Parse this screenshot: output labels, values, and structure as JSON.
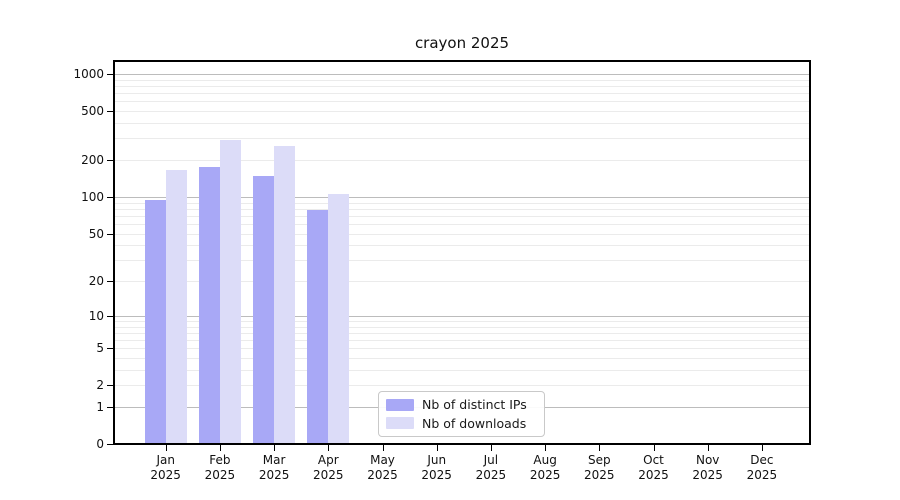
{
  "figure": {
    "title": "crayon 2025",
    "background": "#ffffff"
  },
  "chart_data": {
    "type": "bar",
    "title": "crayon 2025",
    "categories": [
      "Jan 2025",
      "Feb 2025",
      "Mar 2025",
      "Apr 2025",
      "May 2025",
      "Jun 2025",
      "Jul 2025",
      "Aug 2025",
      "Sep 2025",
      "Oct 2025",
      "Nov 2025",
      "Dec 2025"
    ],
    "series": [
      {
        "name": "Nb of distinct IPs",
        "color": "#a8a8f6",
        "values": [
          95,
          175,
          148,
          78,
          null,
          null,
          null,
          null,
          null,
          null,
          null,
          null
        ]
      },
      {
        "name": "Nb of downloads",
        "color": "#dcdcf8",
        "values": [
          165,
          290,
          258,
          106,
          null,
          null,
          null,
          null,
          null,
          null,
          null,
          null
        ]
      }
    ],
    "yscale": "log1p",
    "yticks": [
      0,
      1,
      2,
      5,
      10,
      20,
      50,
      100,
      200,
      500,
      1000
    ],
    "ytick_labels": [
      "0",
      "1",
      "2",
      "5",
      "10",
      "20",
      "50",
      "100",
      "200",
      "500",
      "1000"
    ],
    "minor_yticks": [
      2,
      3,
      4,
      5,
      6,
      7,
      8,
      9,
      20,
      30,
      40,
      50,
      60,
      70,
      80,
      90,
      200,
      300,
      400,
      500,
      600,
      700,
      800,
      900
    ],
    "major_yticks": [
      1,
      10,
      100,
      1000
    ],
    "ylim": [
      0,
      1300
    ],
    "xlabel": "",
    "ylabel": "",
    "grid": "both",
    "legend": {
      "position": "bottom-center",
      "entries": [
        "Nb of distinct IPs",
        "Nb of downloads"
      ]
    },
    "colors": {
      "major_grid": "#bcbcbc",
      "minor_grid": "#ebebeb",
      "spine": "#000000",
      "text": "#111111"
    }
  }
}
